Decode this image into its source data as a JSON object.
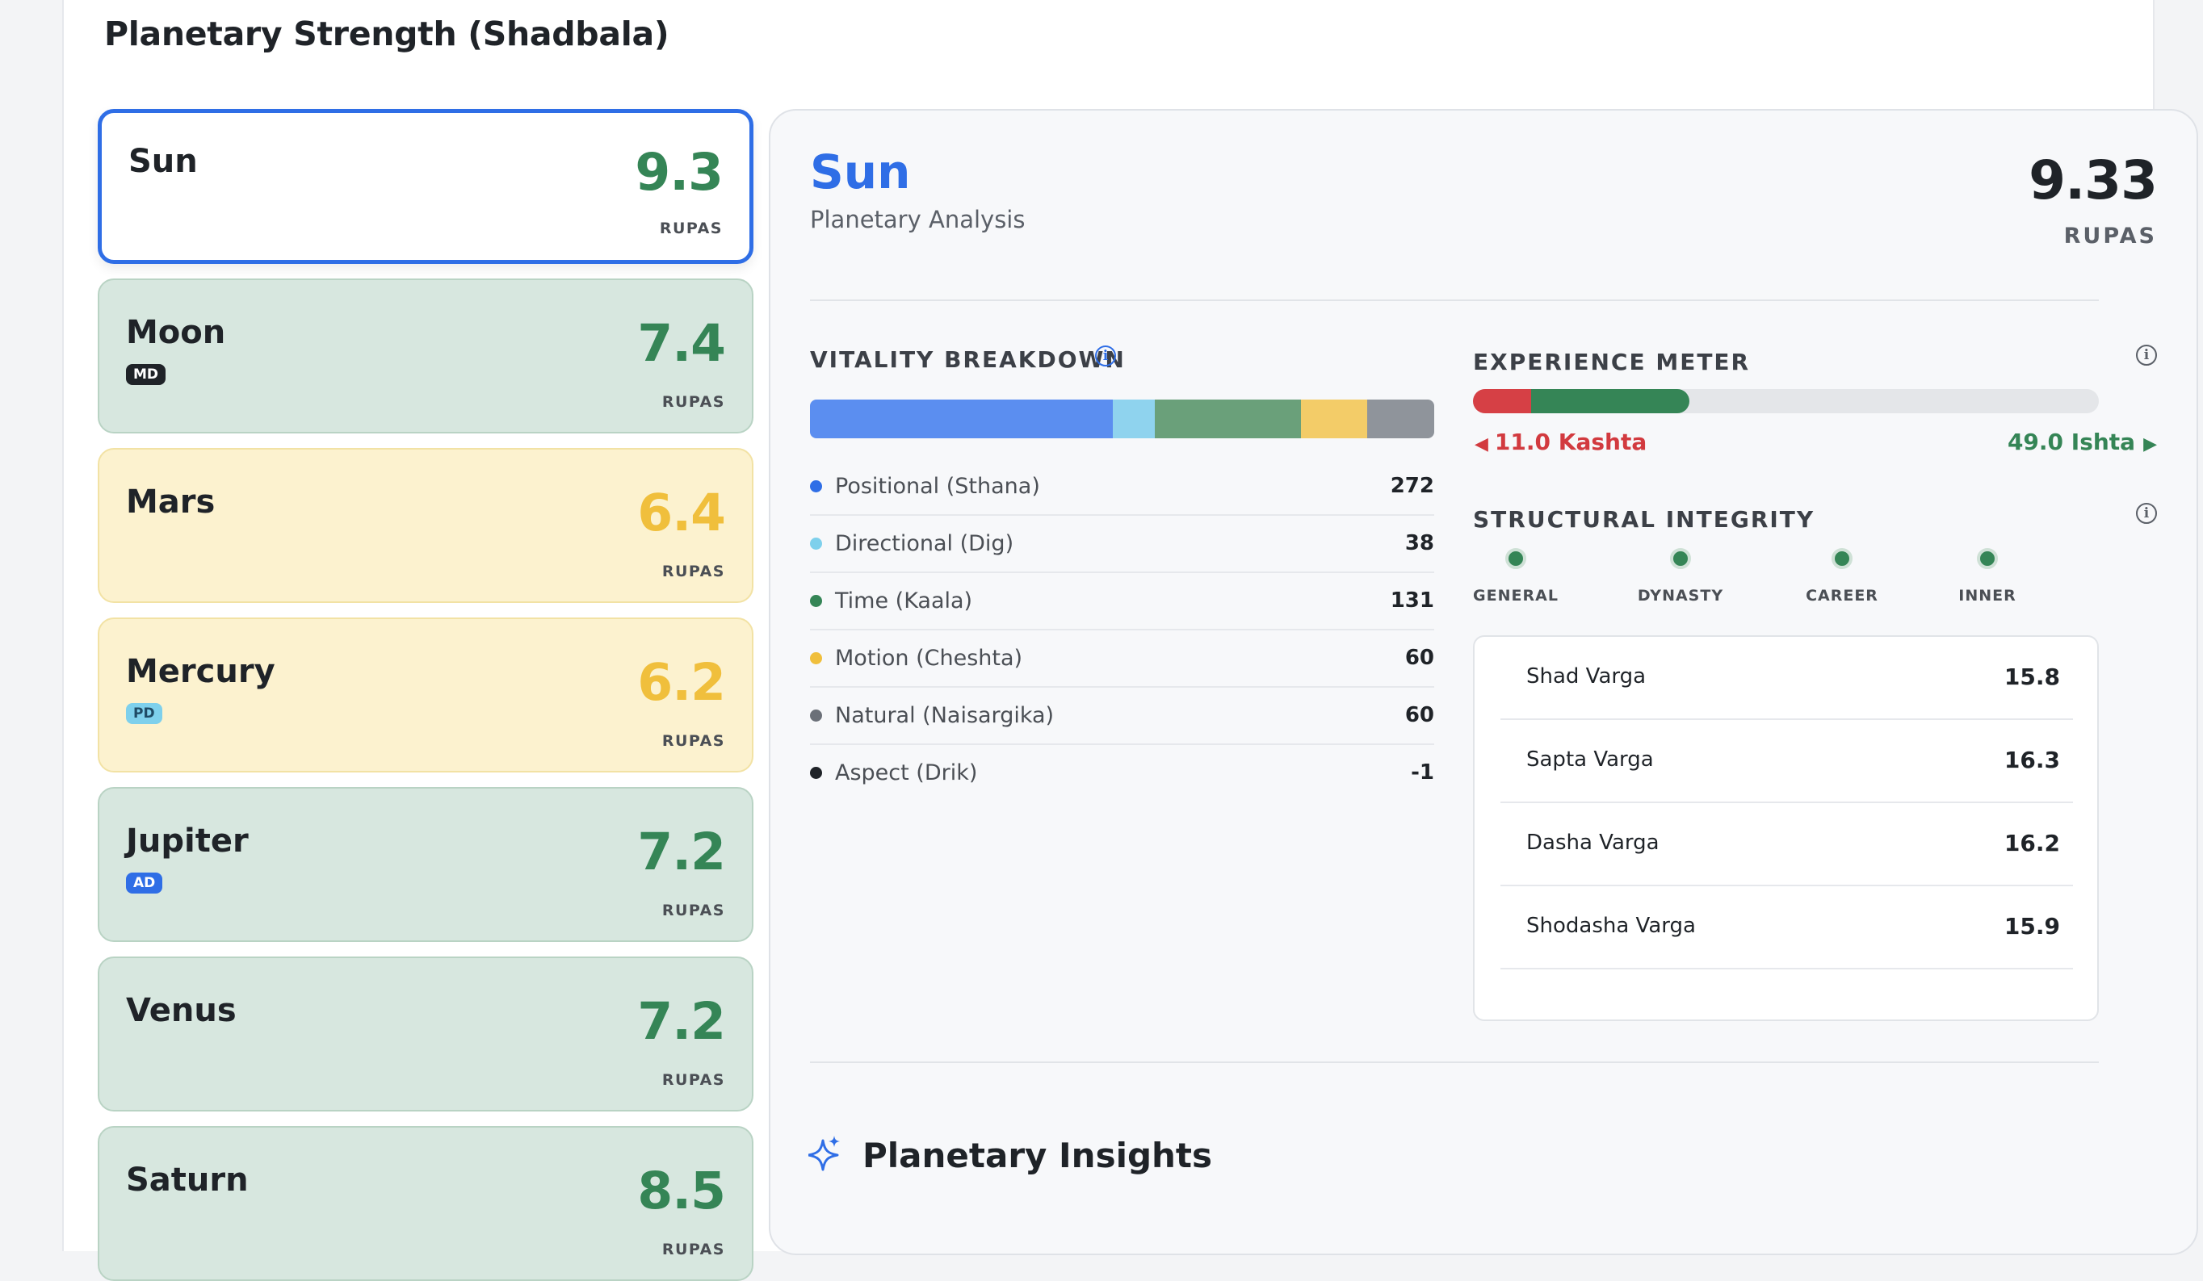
{
  "page": {
    "title": "Planetary Strength (Shadbala)"
  },
  "planets": [
    {
      "name": "Sun",
      "score": "9.3",
      "unit": "RUPAS",
      "badge": "",
      "color": "green",
      "selected": true
    },
    {
      "name": "Moon",
      "score": "7.4",
      "unit": "RUPAS",
      "badge": "MD",
      "color": "green",
      "selected": false
    },
    {
      "name": "Mars",
      "score": "6.4",
      "unit": "RUPAS",
      "badge": "",
      "color": "yellow",
      "selected": false
    },
    {
      "name": "Mercury",
      "score": "6.2",
      "unit": "RUPAS",
      "badge": "PD",
      "color": "yellow",
      "selected": false
    },
    {
      "name": "Jupiter",
      "score": "7.2",
      "unit": "RUPAS",
      "badge": "AD",
      "color": "green",
      "selected": false
    },
    {
      "name": "Venus",
      "score": "7.2",
      "unit": "RUPAS",
      "badge": "",
      "color": "green",
      "selected": false
    },
    {
      "name": "Saturn",
      "score": "8.5",
      "unit": "RUPAS",
      "badge": "",
      "color": "green",
      "selected": false
    }
  ],
  "detail": {
    "name": "Sun",
    "subtitle": "Planetary Analysis",
    "score": "9.33",
    "unit": "RUPAS",
    "vitality": {
      "title": "VITALITY BREAKDOWN",
      "items": [
        {
          "label": "Positional (Sthana)",
          "value": "272",
          "color": "#2f6ee6"
        },
        {
          "label": "Directional (Dig)",
          "value": "38",
          "color": "#7ed0ec"
        },
        {
          "label": "Time (Kaala)",
          "value": "131",
          "color": "#358556"
        },
        {
          "label": "Motion (Cheshta)",
          "value": "60",
          "color": "#f0bf3c"
        },
        {
          "label": "Natural (Naisargika)",
          "value": "60",
          "color": "#6b7078"
        },
        {
          "label": "Aspect (Drik)",
          "value": "-1",
          "color": "#1f2328"
        }
      ]
    },
    "experience": {
      "title": "EXPERIENCE METER",
      "kashta_label": "11.0 Kashta",
      "ishta_label": "49.0 Ishta",
      "kashta": 11.0,
      "ishta": 49.0
    },
    "integrity": {
      "title": "STRUCTURAL INTEGRITY",
      "items": [
        "GENERAL",
        "DYNASTY",
        "CAREER",
        "INNER"
      ]
    },
    "vargas": [
      {
        "name": "Shad Varga",
        "value": "15.8"
      },
      {
        "name": "Sapta Varga",
        "value": "16.3"
      },
      {
        "name": "Dasha Varga",
        "value": "16.2"
      },
      {
        "name": "Shodasha Varga",
        "value": "15.9"
      }
    ],
    "insights_title": "Planetary Insights"
  },
  "colors": {
    "accent": "#2f6ee6",
    "strong": "#358556",
    "moderate": "#f0bf3c",
    "negative": "#d23a3f"
  }
}
